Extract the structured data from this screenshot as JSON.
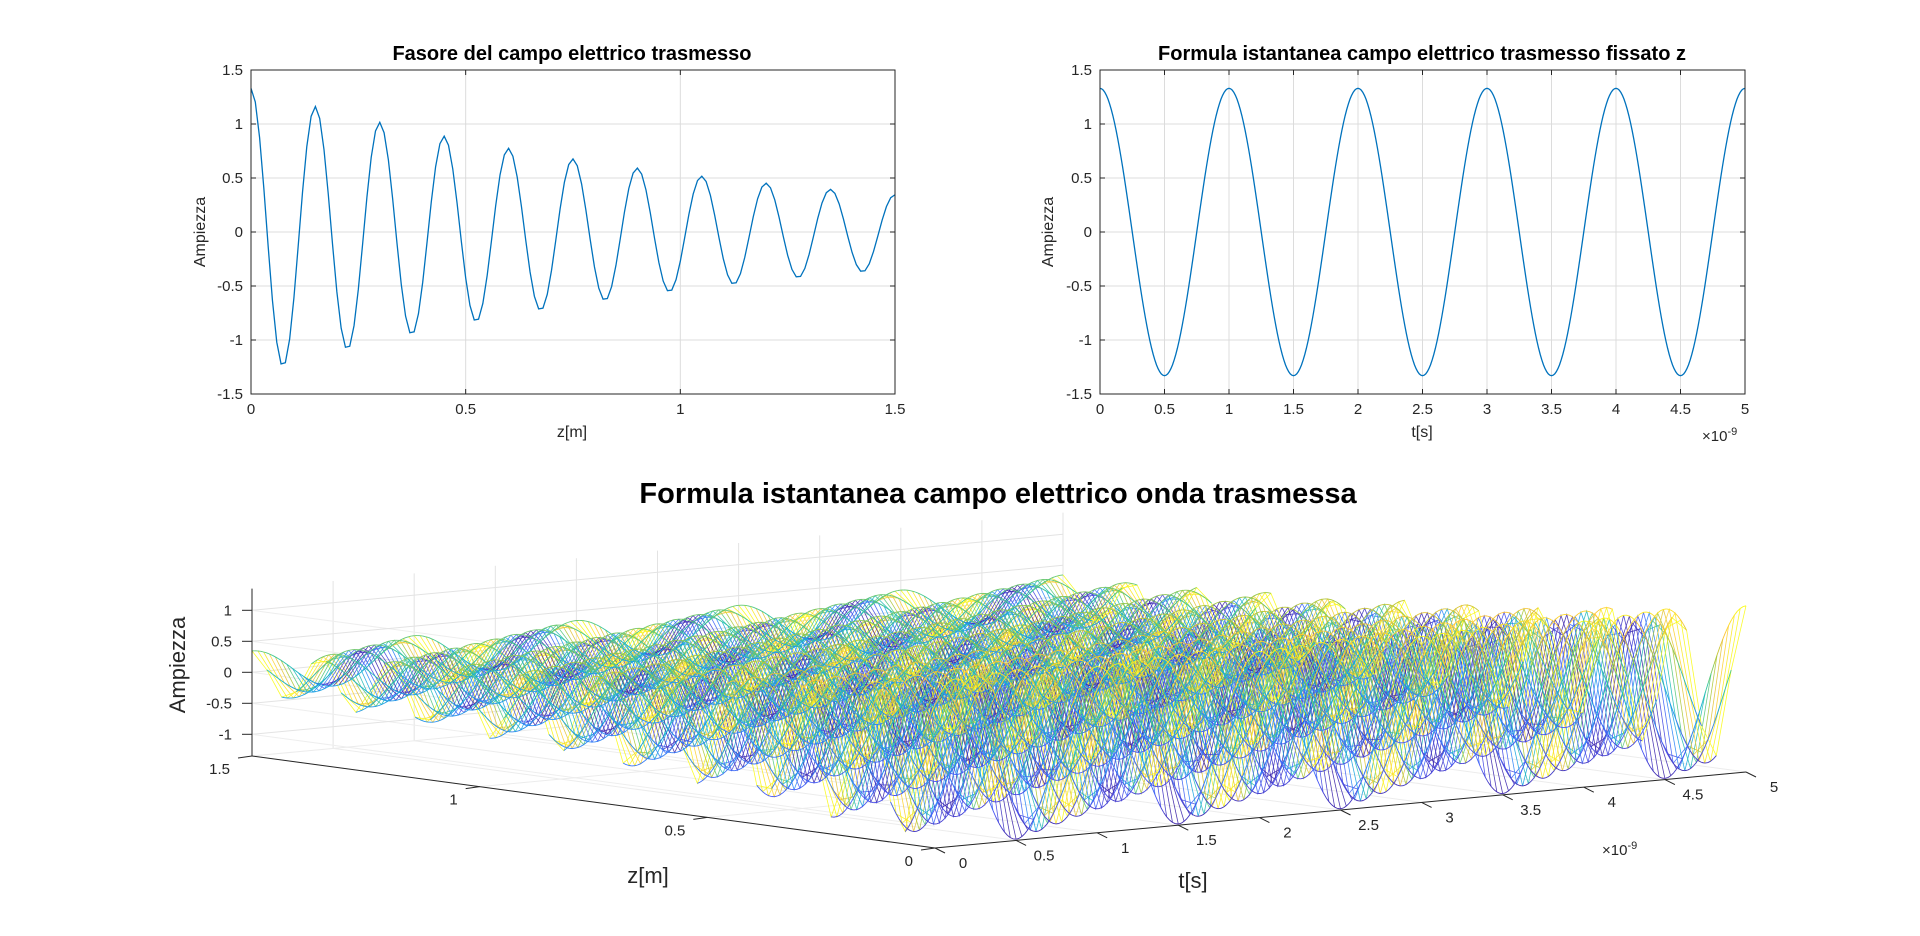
{
  "chart_data": [
    {
      "type": "line",
      "title": "Fasore del campo elettrico trasmesso",
      "xlabel": "z[m]",
      "ylabel": "Ampiezza",
      "xlim": [
        0,
        1.5
      ],
      "ylim": [
        -1.5,
        1.5
      ],
      "xticks": [
        "0",
        "0.5",
        "1",
        "1.5"
      ],
      "yticks": [
        "1.5",
        "1",
        "0.5",
        "0",
        "-0.5",
        "-1",
        "-1.5"
      ],
      "grid": true,
      "line_color": "#0072BD",
      "series": [
        {
          "amplitude": 1.33,
          "decay_rate": 0.9,
          "wavelength": 0.15,
          "range": [
            0,
            1.5
          ]
        }
      ]
    },
    {
      "type": "line",
      "title": "Formula istantanea campo elettrico trasmesso fissato z",
      "xlabel": "t[s]",
      "ylabel": "Ampiezza",
      "xlim": [
        0,
        5e-09
      ],
      "ylim": [
        -1.5,
        1.5
      ],
      "xticks": [
        "0",
        "0.5",
        "1",
        "1.5",
        "2",
        "2.5",
        "3",
        "3.5",
        "4",
        "4.5",
        "5"
      ],
      "yticks": [
        "1.5",
        "1",
        "0.5",
        "0",
        "-0.5",
        "-1",
        "-1.5"
      ],
      "x_exponent_label": "×10",
      "x_exponent_power": "-9",
      "grid": true,
      "line_color": "#0072BD",
      "series": [
        {
          "amplitude": 1.33,
          "period": 1e-09,
          "range": [
            0,
            5e-09
          ]
        }
      ]
    },
    {
      "type": "surface",
      "title": "Formula istantanea campo elettrico onda trasmessa",
      "xlabel": "t[s]",
      "ylabel": "z[m]",
      "zlabel": "Ampiezza",
      "xlim": [
        0,
        5e-09
      ],
      "ylim": [
        0,
        1.5
      ],
      "zlim": [
        -1.33,
        1.33
      ],
      "xticks": [
        "0",
        "0.5",
        "1",
        "1.5",
        "2",
        "2.5",
        "3",
        "3.5",
        "4",
        "4.5",
        "5"
      ],
      "yticks": [
        "0",
        "0.5",
        "1",
        "1.5"
      ],
      "zticks": [
        "1",
        "0.5",
        "0",
        "-0.5",
        "-1"
      ],
      "x_exponent_label": "×10",
      "x_exponent_power": "-9",
      "colormap": "parula",
      "amplitude": 1.33,
      "decay_rate": 0.9,
      "wavelength": 0.15,
      "period": 1e-09
    }
  ]
}
